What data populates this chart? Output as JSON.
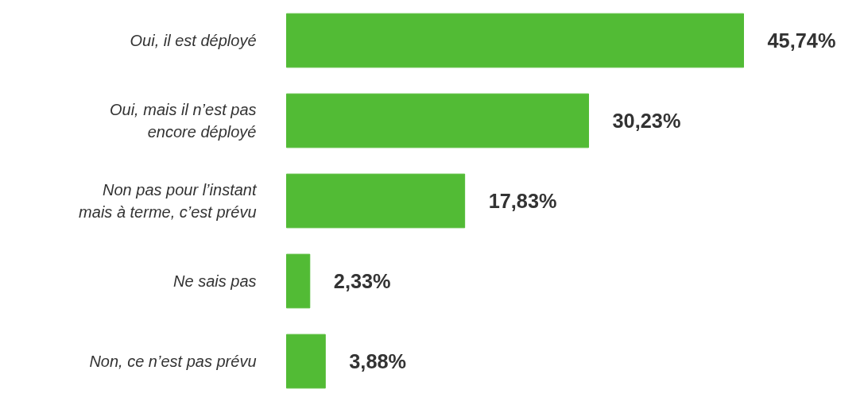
{
  "chart_data": {
    "type": "bar",
    "orientation": "horizontal",
    "categories": [
      "Oui, il est déployé",
      "Oui, mais il n’est pas\nencore déployé",
      "Non pas pour l’instant\nmais à terme, c’est prévu",
      "Ne sais pas",
      "Non, ce n’est pas prévu"
    ],
    "values": [
      45.74,
      30.23,
      17.83,
      2.33,
      3.88
    ],
    "value_labels": [
      "45,74%",
      "30,23%",
      "17,83%",
      "2,33%",
      "3,88%"
    ],
    "color": "#52bb35",
    "grid": false
  }
}
